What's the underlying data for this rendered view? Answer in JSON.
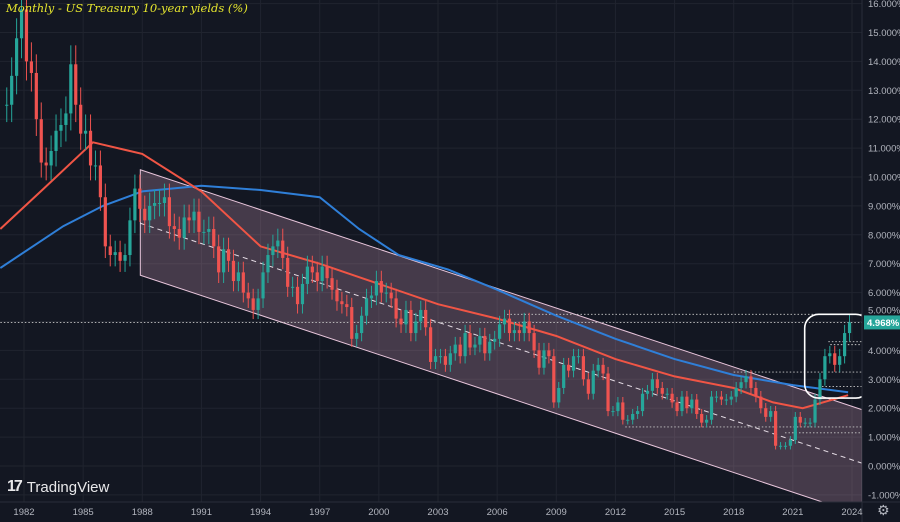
{
  "chart_data": {
    "type": "candlestick",
    "title": "Monthly - US Treasury 10-year yields (%)",
    "xlabel": "",
    "ylabel": "",
    "ylim": [
      -1,
      16
    ],
    "xlim": [
      1980.8,
      2024.5
    ],
    "grid": true,
    "y_ticks": [
      "-1.000%",
      "0.000%",
      "1.000%",
      "2.000%",
      "3.000%",
      "4.000%",
      "5.000%",
      "6.000%",
      "7.000%",
      "8.000%",
      "9.000%",
      "10.000%",
      "11.000%",
      "12.000%",
      "13.000%",
      "14.000%",
      "15.000%",
      "16.000%"
    ],
    "x_ticks": [
      "1982",
      "1985",
      "1988",
      "1991",
      "1994",
      "1997",
      "2000",
      "2003",
      "2006",
      "2009",
      "2012",
      "2015",
      "2018",
      "2021",
      "2024"
    ],
    "last_value_label": "4.968%",
    "colors": {
      "up": "#26a69a",
      "down": "#ef5350",
      "ma_short": "#f05545",
      "ma_long": "#2f7fd8",
      "channel_fill": "#c896b4",
      "last_value": "#26a69a",
      "title": "#e6e62e"
    },
    "yields_quarterly": [
      {
        "year": 1981,
        "q": [
          12.5,
          13.5,
          14.8,
          15.8
        ]
      },
      {
        "year": 1982,
        "q": [
          14.0,
          13.6,
          12.0,
          10.5
        ]
      },
      {
        "year": 1983,
        "q": [
          10.4,
          10.9,
          11.6,
          11.8
        ]
      },
      {
        "year": 1984,
        "q": [
          12.2,
          13.9,
          12.5,
          11.5
        ]
      },
      {
        "year": 1985,
        "q": [
          11.6,
          10.4,
          10.4,
          9.3
        ]
      },
      {
        "year": 1986,
        "q": [
          7.6,
          7.3,
          7.4,
          7.1
        ]
      },
      {
        "year": 1987,
        "q": [
          7.3,
          8.5,
          9.6,
          8.9
        ]
      },
      {
        "year": 1988,
        "q": [
          8.5,
          9.0,
          9.1,
          9.1
        ]
      },
      {
        "year": 1989,
        "q": [
          9.3,
          8.3,
          8.2,
          7.9
        ]
      },
      {
        "year": 1990,
        "q": [
          8.6,
          8.5,
          8.8,
          8.1
        ]
      },
      {
        "year": 1991,
        "q": [
          8.1,
          8.2,
          7.6,
          6.7
        ]
      },
      {
        "year": 1992,
        "q": [
          7.5,
          7.1,
          6.4,
          6.7
        ]
      },
      {
        "year": 1993,
        "q": [
          6.0,
          5.8,
          5.4,
          5.8
        ]
      },
      {
        "year": 1994,
        "q": [
          6.7,
          7.3,
          7.6,
          7.8
        ]
      },
      {
        "year": 1995,
        "q": [
          7.2,
          6.2,
          6.2,
          5.6
        ]
      },
      {
        "year": 1996,
        "q": [
          6.3,
          6.9,
          6.7,
          6.4
        ]
      },
      {
        "year": 1997,
        "q": [
          6.9,
          6.5,
          6.1,
          5.7
        ]
      },
      {
        "year": 1998,
        "q": [
          5.6,
          5.5,
          4.4,
          4.6
        ]
      },
      {
        "year": 1999,
        "q": [
          5.2,
          5.8,
          5.9,
          6.4
        ]
      },
      {
        "year": 2000,
        "q": [
          6.0,
          6.0,
          5.8,
          5.1
        ]
      },
      {
        "year": 2001,
        "q": [
          4.9,
          5.4,
          4.6,
          5.0
        ]
      },
      {
        "year": 2002,
        "q": [
          5.4,
          4.8,
          3.6,
          3.8
        ]
      },
      {
        "year": 2003,
        "q": [
          3.8,
          3.5,
          3.9,
          4.2
        ]
      },
      {
        "year": 2004,
        "q": [
          3.8,
          4.6,
          4.1,
          4.2
        ]
      },
      {
        "year": 2005,
        "q": [
          4.5,
          3.9,
          4.3,
          4.4
        ]
      },
      {
        "year": 2006,
        "q": [
          4.9,
          5.1,
          4.6,
          4.7
        ]
      },
      {
        "year": 2007,
        "q": [
          4.6,
          5.0,
          4.6,
          4.0
        ]
      },
      {
        "year": 2008,
        "q": [
          3.4,
          4.0,
          3.8,
          2.2
        ]
      },
      {
        "year": 2009,
        "q": [
          2.7,
          3.5,
          3.3,
          3.8
        ]
      },
      {
        "year": 2010,
        "q": [
          3.8,
          3.0,
          2.5,
          3.3
        ]
      },
      {
        "year": 2011,
        "q": [
          3.5,
          3.2,
          1.9,
          1.9
        ]
      },
      {
        "year": 2012,
        "q": [
          2.2,
          1.6,
          1.6,
          1.8
        ]
      },
      {
        "year": 2013,
        "q": [
          1.9,
          2.5,
          2.6,
          3.0
        ]
      },
      {
        "year": 2014,
        "q": [
          2.7,
          2.5,
          2.5,
          2.2
        ]
      },
      {
        "year": 2015,
        "q": [
          1.9,
          2.4,
          2.0,
          2.3
        ]
      },
      {
        "year": 2016,
        "q": [
          1.8,
          1.5,
          1.6,
          2.4
        ]
      },
      {
        "year": 2017,
        "q": [
          2.4,
          2.3,
          2.3,
          2.4
        ]
      },
      {
        "year": 2018,
        "q": [
          2.7,
          2.9,
          3.1,
          2.7
        ]
      },
      {
        "year": 2019,
        "q": [
          2.4,
          2.0,
          1.7,
          1.9
        ]
      },
      {
        "year": 2020,
        "q": [
          0.7,
          0.7,
          0.7,
          0.9
        ]
      },
      {
        "year": 2021,
        "q": [
          1.7,
          1.5,
          1.5,
          1.5
        ]
      },
      {
        "year": 2022,
        "q": [
          2.3,
          3.0,
          3.8,
          3.9
        ]
      },
      {
        "year": 2023,
        "q": [
          3.5,
          3.8,
          4.6,
          4.968
        ]
      }
    ],
    "ma_short": [
      [
        1980.8,
        8.2
      ],
      [
        1983,
        9.6
      ],
      [
        1985.5,
        11.2
      ],
      [
        1988,
        10.8
      ],
      [
        1991,
        9.5
      ],
      [
        1994,
        7.6
      ],
      [
        1997,
        7.0
      ],
      [
        2000,
        6.3
      ],
      [
        2003,
        5.6
      ],
      [
        2006,
        5.1
      ],
      [
        2009,
        4.5
      ],
      [
        2012,
        3.7
      ],
      [
        2015,
        3.1
      ],
      [
        2018,
        2.7
      ],
      [
        2020,
        2.2
      ],
      [
        2021.5,
        2.0
      ],
      [
        2023.8,
        2.45
      ]
    ],
    "ma_long": [
      [
        1980.8,
        6.85
      ],
      [
        1984,
        8.3
      ],
      [
        1986,
        9.0
      ],
      [
        1988,
        9.5
      ],
      [
        1991,
        9.7
      ],
      [
        1994,
        9.55
      ],
      [
        1997,
        9.3
      ],
      [
        1999,
        8.2
      ],
      [
        2001,
        7.3
      ],
      [
        2003.5,
        6.8
      ],
      [
        2006,
        6.1
      ],
      [
        2009,
        5.2
      ],
      [
        2012,
        4.4
      ],
      [
        2015,
        3.7
      ],
      [
        2018,
        3.15
      ],
      [
        2021,
        2.8
      ],
      [
        2023.8,
        2.55
      ]
    ],
    "channel": {
      "start": 1987.9,
      "end": 2024.5,
      "upper": [
        10.25,
        1.95
      ],
      "middle": [
        8.4,
        0.1
      ],
      "lower": [
        6.6,
        -1.7
      ]
    },
    "levels": [
      {
        "value": 5.25,
        "from": 2006.5
      },
      {
        "value": 4.968,
        "from": 1980.8
      },
      {
        "value": 4.3,
        "from": 2022.8
      },
      {
        "value": 4.2,
        "from": 2022.9
      },
      {
        "value": 3.25,
        "from": 2018.0
      },
      {
        "value": 2.75,
        "from": 2022.3
      },
      {
        "value": 1.35,
        "from": 2012.5
      },
      {
        "value": 1.15,
        "from": 2020.6
      }
    ],
    "highlight": {
      "from": 2021.6,
      "to": 2024.5,
      "high": 5.25,
      "low": 2.35
    }
  },
  "branding": {
    "logo_text": "TradingView"
  },
  "icons": {
    "settings": "gear-icon"
  }
}
